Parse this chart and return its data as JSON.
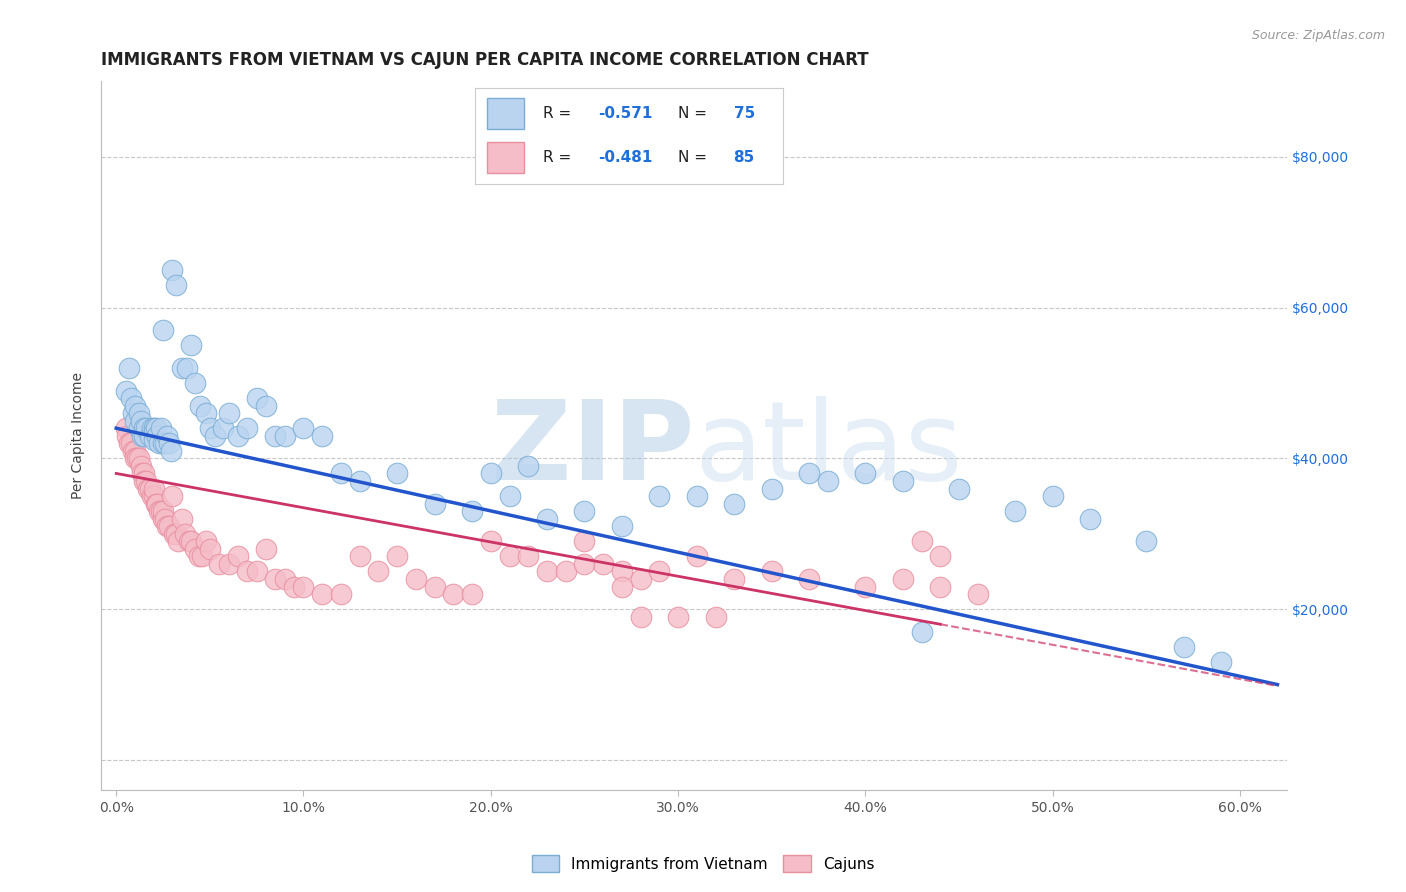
{
  "title": "IMMIGRANTS FROM VIETNAM VS CAJUN PER CAPITA INCOME CORRELATION CHART",
  "source": "Source: ZipAtlas.com",
  "ylabel": "Per Capita Income",
  "xlabel_ticks": [
    0.0,
    0.1,
    0.2,
    0.3,
    0.4,
    0.5,
    0.6
  ],
  "xlabel_labels": [
    "0.0%",
    "10.0%",
    "20.0%",
    "30.0%",
    "40.0%",
    "50.0%",
    "60.0%"
  ],
  "ytick_values": [
    0,
    20000,
    40000,
    60000,
    80000
  ],
  "ytick_labels": [
    "",
    "$20,000",
    "$40,000",
    "$60,000",
    "$80,000"
  ],
  "ylim": [
    -4000,
    90000
  ],
  "xlim": [
    -0.008,
    0.625
  ],
  "legend_r_color": "#1f6fdb",
  "series1_color": "#bad4f0",
  "series1_edge": "#7aadd4",
  "series2_color": "#f5bdc8",
  "series2_edge": "#e88fa0",
  "line1_color": "#2255cc",
  "line2_color": "#cc3366",
  "watermark_color": "#d0e4f5",
  "bottom_legend": [
    "Immigrants from Vietnam",
    "Cajuns"
  ],
  "series1_x": [
    0.005,
    0.007,
    0.008,
    0.009,
    0.01,
    0.01,
    0.012,
    0.012,
    0.013,
    0.014,
    0.015,
    0.015,
    0.016,
    0.018,
    0.019,
    0.02,
    0.02,
    0.02,
    0.021,
    0.022,
    0.023,
    0.024,
    0.025,
    0.025,
    0.026,
    0.027,
    0.028,
    0.029,
    0.03,
    0.032,
    0.035,
    0.038,
    0.04,
    0.042,
    0.045,
    0.048,
    0.05,
    0.053,
    0.057,
    0.06,
    0.065,
    0.07,
    0.075,
    0.08,
    0.085,
    0.09,
    0.1,
    0.11,
    0.12,
    0.13,
    0.15,
    0.17,
    0.19,
    0.21,
    0.23,
    0.25,
    0.27,
    0.29,
    0.31,
    0.33,
    0.35,
    0.38,
    0.4,
    0.42,
    0.45,
    0.48,
    0.5,
    0.52,
    0.55,
    0.57,
    0.59,
    0.2,
    0.22,
    0.37,
    0.43
  ],
  "series1_y": [
    49000,
    52000,
    48000,
    46000,
    45000,
    47000,
    44000,
    46000,
    45000,
    43000,
    44000,
    43000,
    44000,
    43000,
    44000,
    44000,
    43500,
    42500,
    44000,
    43000,
    42000,
    44000,
    57000,
    42000,
    42000,
    43000,
    42000,
    41000,
    65000,
    63000,
    52000,
    52000,
    55000,
    50000,
    47000,
    46000,
    44000,
    43000,
    44000,
    46000,
    43000,
    44000,
    48000,
    47000,
    43000,
    43000,
    44000,
    43000,
    38000,
    37000,
    38000,
    34000,
    33000,
    35000,
    32000,
    33000,
    31000,
    35000,
    35000,
    34000,
    36000,
    37000,
    38000,
    37000,
    36000,
    33000,
    35000,
    32000,
    29000,
    15000,
    13000,
    38000,
    39000,
    38000,
    17000
  ],
  "series2_x": [
    0.005,
    0.006,
    0.007,
    0.008,
    0.009,
    0.01,
    0.01,
    0.011,
    0.012,
    0.013,
    0.014,
    0.015,
    0.015,
    0.016,
    0.017,
    0.018,
    0.019,
    0.02,
    0.02,
    0.021,
    0.022,
    0.023,
    0.024,
    0.025,
    0.025,
    0.026,
    0.027,
    0.028,
    0.03,
    0.031,
    0.032,
    0.033,
    0.035,
    0.037,
    0.039,
    0.04,
    0.042,
    0.044,
    0.046,
    0.048,
    0.05,
    0.055,
    0.06,
    0.065,
    0.07,
    0.075,
    0.08,
    0.085,
    0.09,
    0.095,
    0.1,
    0.11,
    0.12,
    0.13,
    0.14,
    0.15,
    0.16,
    0.17,
    0.18,
    0.19,
    0.2,
    0.21,
    0.22,
    0.23,
    0.24,
    0.25,
    0.26,
    0.27,
    0.28,
    0.29,
    0.31,
    0.33,
    0.35,
    0.37,
    0.4,
    0.42,
    0.44,
    0.46,
    0.43,
    0.44,
    0.25,
    0.27,
    0.28,
    0.3,
    0.32
  ],
  "series2_y": [
    44000,
    43000,
    42000,
    42000,
    41000,
    41000,
    40000,
    40000,
    40000,
    39000,
    38000,
    38000,
    37000,
    37000,
    36000,
    36000,
    35000,
    35000,
    36000,
    34000,
    34000,
    33000,
    33000,
    32000,
    33000,
    32000,
    31000,
    31000,
    35000,
    30000,
    30000,
    29000,
    32000,
    30000,
    29000,
    29000,
    28000,
    27000,
    27000,
    29000,
    28000,
    26000,
    26000,
    27000,
    25000,
    25000,
    28000,
    24000,
    24000,
    23000,
    23000,
    22000,
    22000,
    27000,
    25000,
    27000,
    24000,
    23000,
    22000,
    22000,
    29000,
    27000,
    27000,
    25000,
    25000,
    29000,
    26000,
    25000,
    24000,
    25000,
    27000,
    24000,
    25000,
    24000,
    23000,
    24000,
    23000,
    22000,
    29000,
    27000,
    26000,
    23000,
    19000,
    19000,
    19000
  ],
  "title_fontsize": 12,
  "axis_label_fontsize": 10,
  "tick_fontsize": 10
}
